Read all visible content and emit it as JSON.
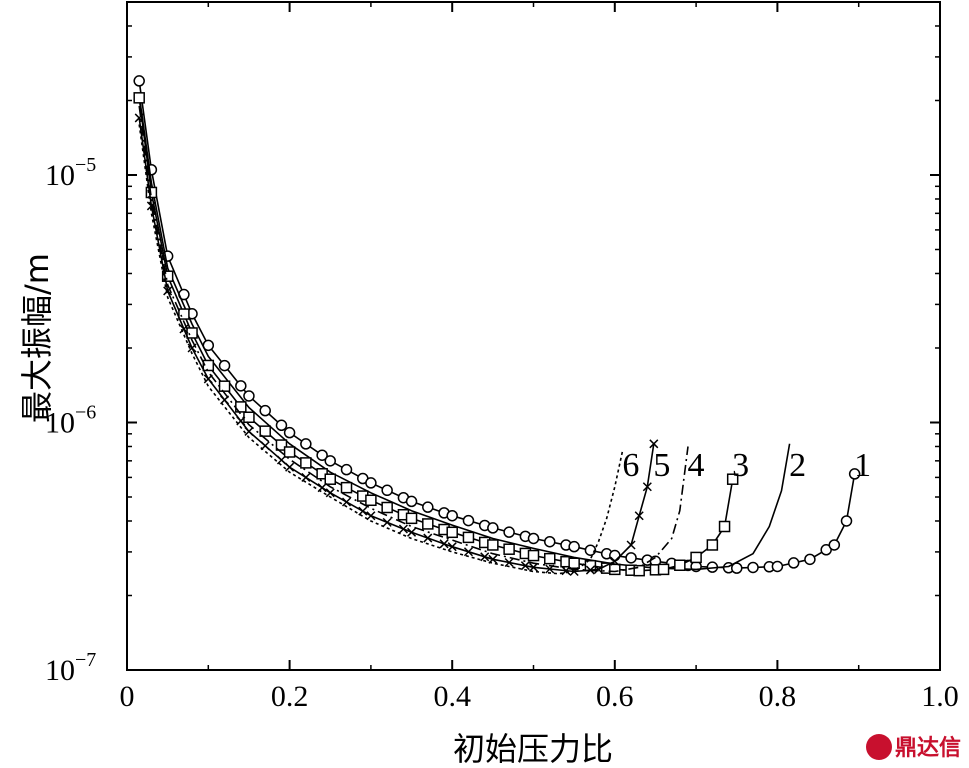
{
  "chart_data": {
    "type": "line",
    "xlabel": "初始压力比",
    "ylabel": "最大振幅/m",
    "xlim": [
      0,
      1.0
    ],
    "ylim": [
      1e-07,
      5e-05
    ],
    "yscale": "log",
    "xticks": [
      "0",
      "0.2",
      "0.4",
      "0.6",
      "0.8",
      "1.0"
    ],
    "yticks": [
      {
        "base": "10",
        "exp": "−7",
        "value": 1e-07
      },
      {
        "base": "10",
        "exp": "−6",
        "value": 1e-06
      },
      {
        "base": "10",
        "exp": "−5",
        "value": 1e-05
      }
    ],
    "grid": false,
    "series": [
      {
        "name": "1",
        "style": "solid",
        "marker": "circle",
        "x": [
          0.015,
          0.03,
          0.05,
          0.08,
          0.1,
          0.15,
          0.2,
          0.25,
          0.3,
          0.35,
          0.4,
          0.45,
          0.5,
          0.55,
          0.6,
          0.65,
          0.7,
          0.75,
          0.8,
          0.84,
          0.87,
          0.885,
          0.895
        ],
        "y": [
          2.4e-05,
          1.05e-05,
          4.7e-06,
          2.75e-06,
          2.05e-06,
          1.28e-06,
          9.1e-07,
          7e-07,
          5.7e-07,
          4.8e-07,
          4.2e-07,
          3.75e-07,
          3.4e-07,
          3.15e-07,
          2.9e-07,
          2.75e-07,
          2.62e-07,
          2.58e-07,
          2.62e-07,
          2.8e-07,
          3.2e-07,
          4e-07,
          6.2e-07
        ]
      },
      {
        "name": "2",
        "style": "solid",
        "marker": "none",
        "x": [
          0.015,
          0.03,
          0.05,
          0.08,
          0.1,
          0.15,
          0.2,
          0.25,
          0.3,
          0.35,
          0.4,
          0.45,
          0.5,
          0.55,
          0.6,
          0.65,
          0.7,
          0.74,
          0.77,
          0.79,
          0.805,
          0.815
        ],
        "y": [
          2.1e-05,
          9.3e-06,
          4.2e-06,
          2.5e-06,
          1.85e-06,
          1.15e-06,
          8.2e-07,
          6.3e-07,
          5.2e-07,
          4.4e-07,
          3.85e-07,
          3.4e-07,
          3.1e-07,
          2.85e-07,
          2.68e-07,
          2.58e-07,
          2.55e-07,
          2.62e-07,
          2.95e-07,
          3.8e-07,
          5.3e-07,
          8.2e-07
        ]
      },
      {
        "name": "3",
        "style": "solid",
        "marker": "square",
        "x": [
          0.015,
          0.03,
          0.05,
          0.08,
          0.1,
          0.15,
          0.2,
          0.25,
          0.3,
          0.35,
          0.4,
          0.45,
          0.5,
          0.55,
          0.6,
          0.63,
          0.66,
          0.68,
          0.7,
          0.72,
          0.735,
          0.745
        ],
        "y": [
          2.05e-05,
          8.5e-06,
          3.9e-06,
          2.3e-06,
          1.7e-06,
          1.05e-06,
          7.6e-07,
          5.9e-07,
          4.85e-07,
          4.1e-07,
          3.6e-07,
          3.2e-07,
          2.9e-07,
          2.7e-07,
          2.55e-07,
          2.52e-07,
          2.55e-07,
          2.65e-07,
          2.85e-07,
          3.2e-07,
          3.8e-07,
          5.9e-07
        ]
      },
      {
        "name": "4",
        "style": "dashdot",
        "marker": "none",
        "x": [
          0.015,
          0.03,
          0.05,
          0.08,
          0.1,
          0.15,
          0.2,
          0.25,
          0.3,
          0.35,
          0.4,
          0.45,
          0.5,
          0.55,
          0.6,
          0.63,
          0.65,
          0.67,
          0.68,
          0.69
        ],
        "y": [
          1.9e-05,
          8e-06,
          3.6e-06,
          2.15e-06,
          1.6e-06,
          9.8e-07,
          7.1e-07,
          5.5e-07,
          4.5e-07,
          3.8e-07,
          3.35e-07,
          2.95e-07,
          2.7e-07,
          2.55e-07,
          2.5e-07,
          2.6e-07,
          2.85e-07,
          3.4e-07,
          4.4e-07,
          8e-07
        ]
      },
      {
        "name": "5",
        "style": "solid",
        "marker": "cross",
        "x": [
          0.015,
          0.03,
          0.05,
          0.08,
          0.1,
          0.15,
          0.2,
          0.25,
          0.3,
          0.35,
          0.4,
          0.45,
          0.5,
          0.55,
          0.58,
          0.6,
          0.62,
          0.63,
          0.64,
          0.648
        ],
        "y": [
          1.7e-05,
          7.5e-06,
          3.4e-06,
          2e-06,
          1.5e-06,
          9.2e-07,
          6.6e-07,
          5.2e-07,
          4.2e-07,
          3.6e-07,
          3.15e-07,
          2.8e-07,
          2.6e-07,
          2.5e-07,
          2.55e-07,
          2.75e-07,
          3.2e-07,
          4.2e-07,
          5.5e-07,
          8.2e-07
        ]
      },
      {
        "name": "6",
        "style": "dotted-dash",
        "marker": "none",
        "x": [
          0.015,
          0.03,
          0.05,
          0.08,
          0.1,
          0.15,
          0.2,
          0.25,
          0.3,
          0.35,
          0.4,
          0.45,
          0.5,
          0.53,
          0.55,
          0.57,
          0.58,
          0.59,
          0.6,
          0.61
        ],
        "y": [
          1.6e-05,
          7e-06,
          3.2e-06,
          1.9e-06,
          1.4e-06,
          8.7e-07,
          6.3e-07,
          5e-07,
          4e-07,
          3.4e-07,
          3e-07,
          2.7e-07,
          2.5e-07,
          2.45e-07,
          2.5e-07,
          2.8e-07,
          3.3e-07,
          4.1e-07,
          5.5e-07,
          7.8e-07
        ]
      }
    ]
  },
  "watermark": {
    "text": "鼎达信",
    "color": "#c8102e"
  }
}
